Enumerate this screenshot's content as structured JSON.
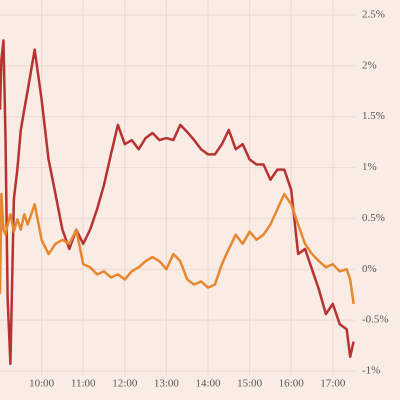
{
  "chart_data": {
    "type": "line",
    "x": [
      540,
      542,
      545,
      548,
      551,
      555,
      560,
      565,
      570,
      575,
      580,
      590,
      600,
      610,
      620,
      630,
      640,
      650,
      660,
      670,
      680,
      690,
      700,
      710,
      720,
      730,
      740,
      750,
      760,
      770,
      780,
      790,
      800,
      810,
      820,
      830,
      840,
      850,
      860,
      870,
      880,
      890,
      900,
      910,
      920,
      930,
      940,
      950,
      960,
      970,
      980,
      990,
      1000,
      1010,
      1020,
      1030,
      1040,
      1045,
      1050
    ],
    "series": [
      {
        "color": "#b83232",
        "values": [
          1.57,
          2.06,
          2.25,
          1.27,
          -0.29,
          -0.93,
          0.69,
          0.98,
          1.37,
          1.57,
          1.76,
          2.16,
          1.67,
          1.08,
          0.74,
          0.39,
          0.2,
          0.39,
          0.25,
          0.39,
          0.59,
          0.83,
          1.13,
          1.42,
          1.23,
          1.27,
          1.18,
          1.29,
          1.34,
          1.27,
          1.29,
          1.27,
          1.42,
          1.35,
          1.27,
          1.18,
          1.13,
          1.13,
          1.23,
          1.37,
          1.18,
          1.23,
          1.08,
          1.03,
          1.03,
          0.88,
          0.98,
          0.98,
          0.78,
          0.15,
          0.2,
          0,
          -0.2,
          -0.44,
          -0.34,
          -0.54,
          -0.59,
          -0.86,
          -0.71
        ]
      },
      {
        "color": "#e8872f",
        "values": [
          -0.24,
          0.74,
          0.39,
          0.34,
          0.44,
          0.54,
          0.37,
          0.49,
          0.39,
          0.54,
          0.44,
          0.64,
          0.29,
          0.15,
          0.25,
          0.29,
          0.25,
          0.39,
          0.05,
          0.02,
          -0.05,
          -0.02,
          -0.08,
          -0.05,
          -0.1,
          -0.02,
          0.02,
          0.08,
          0.12,
          0.08,
          0,
          0.15,
          0.08,
          -0.1,
          -0.15,
          -0.12,
          -0.18,
          -0.15,
          0.05,
          0.2,
          0.34,
          0.25,
          0.37,
          0.29,
          0.34,
          0.44,
          0.59,
          0.74,
          0.64,
          0.44,
          0.25,
          0.15,
          0.08,
          0.02,
          0.05,
          -0.02,
          0,
          -0.1,
          -0.34
        ]
      }
    ],
    "xlim": [
      540,
      1052
    ],
    "xticks": [
      {
        "value": 600,
        "label": "10:00"
      },
      {
        "value": 660,
        "label": "11:00"
      },
      {
        "value": 720,
        "label": "12:00"
      },
      {
        "value": 780,
        "label": "13:00"
      },
      {
        "value": 840,
        "label": "14:00"
      },
      {
        "value": 900,
        "label": "15:00"
      },
      {
        "value": 960,
        "label": "16:00"
      },
      {
        "value": 1020,
        "label": "17:00"
      }
    ],
    "ylim": [
      -1,
      2.5
    ],
    "yticks": [
      {
        "value": 2.5,
        "label": "2.5%"
      },
      {
        "value": 2,
        "label": "2%"
      },
      {
        "value": 1.5,
        "label": "1.5%"
      },
      {
        "value": 1,
        "label": "1%"
      },
      {
        "value": 0.5,
        "label": "0.5%"
      },
      {
        "value": 0,
        "label": "0%"
      },
      {
        "value": -0.5,
        "label": "-0.5%"
      },
      {
        "value": -1,
        "label": "-1%"
      }
    ],
    "grid": true
  }
}
